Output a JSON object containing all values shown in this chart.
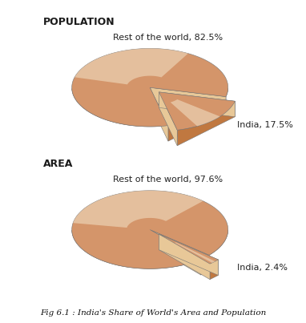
{
  "chart1_title": "POPULATION",
  "chart2_title": "AREA",
  "chart1_slices": [
    82.5,
    17.5
  ],
  "chart2_slices": [
    97.6,
    2.4
  ],
  "chart1_labels": [
    "Rest of the world, 82.5%",
    "India, 17.5%"
  ],
  "chart2_labels": [
    "Rest of the world, 97.6%",
    "India, 2.4%"
  ],
  "bg_color": "#c8cce0",
  "panel_bg": "#d0d4e8",
  "border_color": "#2a3580",
  "fig_bg": "#ffffff",
  "caption": "Fig 6.1 : India's Share of World's Area and Population",
  "pie_color_main": "#d4956a",
  "pie_color_light": "#f5dfc0",
  "pie_color_side": "#c47840",
  "pie_edge_color": "#555555"
}
